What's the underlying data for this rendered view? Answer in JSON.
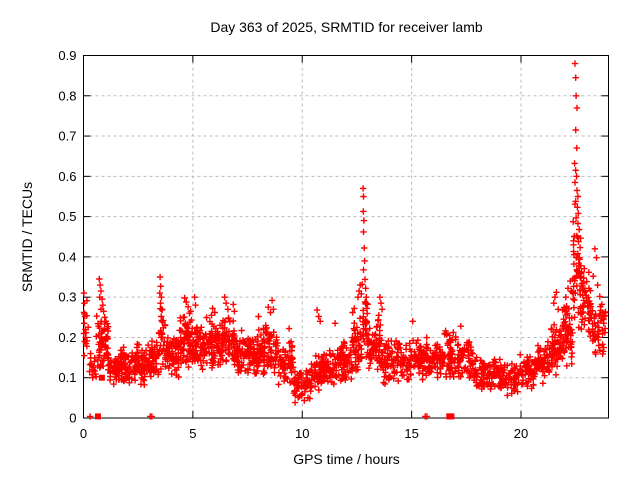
{
  "chart_data": {
    "type": "scatter",
    "title": "Day 363 of 2025, SRMTID for receiver lamb",
    "xlabel": "GPS time / hours",
    "ylabel": "SRMTID / TECUs",
    "xlim": [
      0,
      24
    ],
    "ylim": [
      0,
      0.9
    ],
    "xtick_values": [
      0,
      5,
      10,
      15,
      20
    ],
    "xtick_labels": [
      "0",
      "5",
      "10",
      "15",
      "20"
    ],
    "ytick_values": [
      0,
      0.1,
      0.2,
      0.3,
      0.4,
      0.5,
      0.6,
      0.7,
      0.8,
      0.9
    ],
    "ytick_labels": [
      "0",
      "0.1",
      "0.2",
      "0.3",
      "0.4",
      "0.5",
      "0.6",
      "0.7",
      "0.8",
      "0.9"
    ],
    "grid": true,
    "grid_color": "#bbbbbb",
    "border_color": "#000000",
    "marker": "plus",
    "marker_color": "#ff0000",
    "legend": "none",
    "seed": 1363,
    "points": [
      [
        0.02,
        0.31
      ],
      [
        0.04,
        0.285
      ],
      [
        0.02,
        0.262
      ],
      [
        0.05,
        0.258
      ],
      [
        0.03,
        0.235
      ],
      [
        0.02,
        0.21
      ],
      [
        0.05,
        0.19
      ],
      [
        0.03,
        0.155
      ],
      [
        0.08,
        0.22
      ],
      [
        0.1,
        0.2
      ],
      [
        0.32,
        0.16
      ],
      [
        0.38,
        0.13
      ],
      [
        0.45,
        0.12
      ],
      [
        0.42,
        0.1
      ],
      [
        0.5,
        0.14
      ],
      [
        0.72,
        0.345
      ],
      [
        0.76,
        0.33
      ],
      [
        0.8,
        0.315
      ],
      [
        0.74,
        0.3
      ],
      [
        0.85,
        0.295
      ],
      [
        0.88,
        0.28
      ],
      [
        0.92,
        0.265
      ],
      [
        0.8,
        0.27
      ],
      [
        0.97,
        0.25
      ],
      [
        1.02,
        0.24
      ],
      [
        3.5,
        0.35
      ],
      [
        3.53,
        0.327
      ],
      [
        3.49,
        0.31
      ],
      [
        3.56,
        0.3
      ],
      [
        3.52,
        0.285
      ],
      [
        3.58,
        0.27
      ],
      [
        3.55,
        0.252
      ],
      [
        3.61,
        0.238
      ],
      [
        3.65,
        0.224
      ],
      [
        4.62,
        0.298
      ],
      [
        4.7,
        0.288
      ],
      [
        4.78,
        0.276
      ],
      [
        4.9,
        0.265
      ],
      [
        5.08,
        0.3
      ],
      [
        5.12,
        0.28
      ],
      [
        5.9,
        0.272
      ],
      [
        6.0,
        0.262
      ],
      [
        5.85,
        0.255
      ],
      [
        6.45,
        0.3
      ],
      [
        6.52,
        0.285
      ],
      [
        6.6,
        0.27
      ],
      [
        6.85,
        0.282
      ],
      [
        6.9,
        0.265
      ],
      [
        8.0,
        0.252
      ],
      [
        8.45,
        0.275
      ],
      [
        8.55,
        0.262
      ],
      [
        8.62,
        0.292
      ],
      [
        8.68,
        0.27
      ],
      [
        9.4,
        0.222
      ],
      [
        10.68,
        0.268
      ],
      [
        10.75,
        0.252
      ],
      [
        10.82,
        0.24
      ],
      [
        11.5,
        0.235
      ],
      [
        12.3,
        0.262
      ],
      [
        12.38,
        0.272
      ],
      [
        12.55,
        0.3
      ],
      [
        12.6,
        0.315
      ],
      [
        12.65,
        0.33
      ],
      [
        12.78,
        0.57
      ],
      [
        12.8,
        0.55
      ],
      [
        12.79,
        0.513
      ],
      [
        12.82,
        0.49
      ],
      [
        12.8,
        0.462
      ],
      [
        12.83,
        0.422
      ],
      [
        12.85,
        0.39
      ],
      [
        12.8,
        0.368
      ],
      [
        12.87,
        0.344
      ],
      [
        12.74,
        0.332
      ],
      [
        12.9,
        0.322
      ],
      [
        12.7,
        0.308
      ],
      [
        12.93,
        0.3
      ],
      [
        12.88,
        0.288
      ],
      [
        12.95,
        0.272
      ],
      [
        13.55,
        0.3
      ],
      [
        13.6,
        0.285
      ],
      [
        13.65,
        0.27
      ],
      [
        13.5,
        0.255
      ],
      [
        15.05,
        0.24
      ],
      [
        17.25,
        0.228
      ],
      [
        21.55,
        0.3
      ],
      [
        21.62,
        0.312
      ],
      [
        21.5,
        0.285
      ],
      [
        21.7,
        0.27
      ],
      [
        22.05,
        0.3
      ],
      [
        22.15,
        0.322
      ],
      [
        22.25,
        0.34
      ],
      [
        22.3,
        0.315
      ],
      [
        22.47,
        0.88
      ],
      [
        22.5,
        0.845
      ],
      [
        22.52,
        0.8
      ],
      [
        22.56,
        0.77
      ],
      [
        22.5,
        0.715
      ],
      [
        22.55,
        0.67
      ],
      [
        22.45,
        0.632
      ],
      [
        22.5,
        0.615
      ],
      [
        22.54,
        0.6
      ],
      [
        22.47,
        0.585
      ],
      [
        22.56,
        0.565
      ],
      [
        22.6,
        0.55
      ],
      [
        22.5,
        0.538
      ],
      [
        22.58,
        0.523
      ],
      [
        22.62,
        0.508
      ],
      [
        22.52,
        0.497
      ],
      [
        22.6,
        0.483
      ],
      [
        22.66,
        0.468
      ],
      [
        22.55,
        0.452
      ],
      [
        22.63,
        0.438
      ],
      [
        22.7,
        0.423
      ],
      [
        22.6,
        0.408
      ],
      [
        22.68,
        0.394
      ],
      [
        22.74,
        0.378
      ],
      [
        22.65,
        0.362
      ],
      [
        22.72,
        0.348
      ],
      [
        22.78,
        0.333
      ],
      [
        22.7,
        0.318
      ],
      [
        22.4,
        0.43
      ],
      [
        22.42,
        0.382
      ],
      [
        22.37,
        0.345
      ],
      [
        22.35,
        0.312
      ],
      [
        22.82,
        0.305
      ],
      [
        22.87,
        0.292
      ],
      [
        23.3,
        0.352
      ],
      [
        23.38,
        0.42
      ],
      [
        23.45,
        0.398
      ],
      [
        23.5,
        0.33
      ],
      [
        23.6,
        0.302
      ],
      [
        23.7,
        0.282
      ],
      [
        23.8,
        0.252
      ],
      [
        23.85,
        0.222
      ],
      [
        0.3,
        0.004
      ],
      [
        3.05,
        0.004
      ],
      [
        3.12,
        0.004
      ],
      [
        15.62,
        0.004
      ],
      [
        15.7,
        0.004
      ]
    ],
    "square_points": [
      [
        0.66,
        0.004
      ],
      [
        16.72,
        0.004
      ],
      [
        16.82,
        0.004
      ],
      [
        0.84,
        0.1
      ]
    ],
    "noise_bands_format": "[x_start, x_end, count, y_min, y_max]",
    "noise_bands": [
      [
        0.0,
        0.25,
        8,
        0.15,
        0.3
      ],
      [
        0.25,
        0.6,
        10,
        0.09,
        0.16
      ],
      [
        0.55,
        1.15,
        60,
        0.1,
        0.26
      ],
      [
        1.1,
        1.7,
        55,
        0.07,
        0.17
      ],
      [
        1.7,
        2.4,
        70,
        0.08,
        0.18
      ],
      [
        2.4,
        3.1,
        70,
        0.08,
        0.19
      ],
      [
        3.1,
        3.45,
        35,
        0.1,
        0.2
      ],
      [
        3.45,
        3.75,
        28,
        0.12,
        0.28
      ],
      [
        3.75,
        4.35,
        60,
        0.1,
        0.21
      ],
      [
        4.35,
        5.0,
        70,
        0.12,
        0.27
      ],
      [
        5.0,
        5.6,
        65,
        0.11,
        0.24
      ],
      [
        5.6,
        6.3,
        70,
        0.12,
        0.26
      ],
      [
        6.3,
        6.9,
        60,
        0.12,
        0.26
      ],
      [
        6.9,
        7.6,
        65,
        0.1,
        0.22
      ],
      [
        7.6,
        8.2,
        60,
        0.1,
        0.22
      ],
      [
        8.2,
        8.9,
        65,
        0.1,
        0.24
      ],
      [
        8.9,
        9.6,
        60,
        0.08,
        0.2
      ],
      [
        9.6,
        10.4,
        58,
        0.03,
        0.14
      ],
      [
        10.4,
        10.9,
        45,
        0.06,
        0.16
      ],
      [
        10.9,
        11.6,
        60,
        0.07,
        0.17
      ],
      [
        11.6,
        12.3,
        60,
        0.08,
        0.2
      ],
      [
        12.3,
        12.75,
        45,
        0.1,
        0.26
      ],
      [
        12.75,
        13.0,
        28,
        0.14,
        0.32
      ],
      [
        13.0,
        13.6,
        55,
        0.1,
        0.26
      ],
      [
        13.6,
        14.3,
        60,
        0.08,
        0.2
      ],
      [
        14.3,
        15.0,
        60,
        0.09,
        0.2
      ],
      [
        15.0,
        15.7,
        60,
        0.09,
        0.21
      ],
      [
        15.7,
        16.4,
        60,
        0.09,
        0.2
      ],
      [
        16.4,
        17.1,
        60,
        0.1,
        0.22
      ],
      [
        17.1,
        17.8,
        60,
        0.09,
        0.2
      ],
      [
        17.8,
        18.5,
        55,
        0.06,
        0.16
      ],
      [
        18.5,
        19.2,
        55,
        0.06,
        0.15
      ],
      [
        19.2,
        19.9,
        55,
        0.05,
        0.14
      ],
      [
        19.9,
        20.6,
        55,
        0.07,
        0.16
      ],
      [
        20.6,
        21.3,
        60,
        0.08,
        0.19
      ],
      [
        21.3,
        21.9,
        65,
        0.1,
        0.24
      ],
      [
        21.9,
        22.35,
        55,
        0.12,
        0.3
      ],
      [
        22.35,
        22.75,
        40,
        0.22,
        0.55
      ],
      [
        22.75,
        23.2,
        45,
        0.18,
        0.38
      ],
      [
        23.2,
        23.86,
        50,
        0.14,
        0.3
      ]
    ]
  }
}
